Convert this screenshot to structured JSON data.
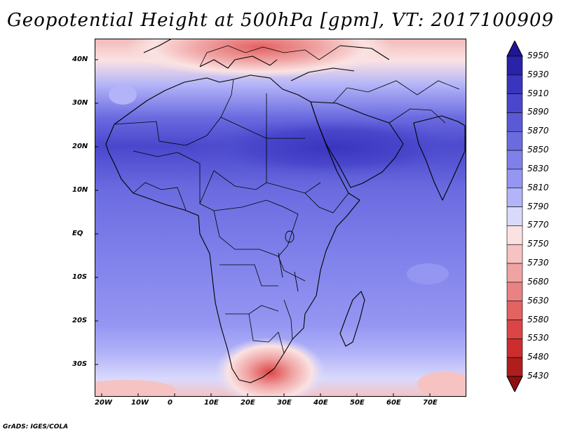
{
  "title": "Geopotential Height at 500hPa [gpm], VT: 2017100909",
  "footer": "GrADS: IGES/COLA",
  "x_ticks": [
    "20W",
    "10W",
    "0",
    "10E",
    "20E",
    "30E",
    "40E",
    "50E",
    "60E",
    "70E"
  ],
  "y_ticks": [
    "40N",
    "30N",
    "20N",
    "10N",
    "EQ",
    "10S",
    "20S",
    "30S"
  ],
  "colorbar": {
    "levels": [
      "5950",
      "5930",
      "5910",
      "5890",
      "5870",
      "5850",
      "5830",
      "5810",
      "5790",
      "5770",
      "5750",
      "5730",
      "5680",
      "5630",
      "5580",
      "5530",
      "5480",
      "5430"
    ],
    "colors": [
      "#1f1596",
      "#2a22a8",
      "#3a35bf",
      "#4a47cc",
      "#5a5ad6",
      "#6b6be0",
      "#7f80ea",
      "#9596f2",
      "#b2b3f8",
      "#d9d9fc",
      "#fbe2e2",
      "#f6c2c2",
      "#f0a3a3",
      "#e98282",
      "#e36262",
      "#dc4545",
      "#cd2d2d",
      "#b01d1d",
      "#8f1010"
    ]
  }
}
